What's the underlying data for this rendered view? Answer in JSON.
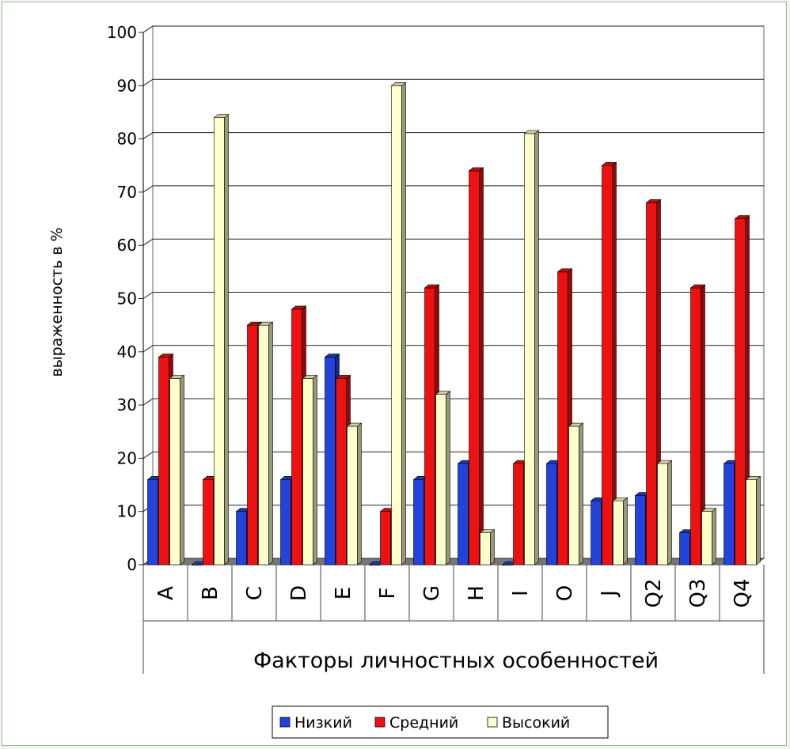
{
  "chart_data": {
    "type": "bar",
    "title": "",
    "xlabel": "Факторы личностных особенностей",
    "ylabel": "выраженность в %",
    "ylim": [
      0,
      100
    ],
    "yticks": [
      "0",
      "10",
      "20",
      "30",
      "40",
      "50",
      "60",
      "70",
      "80",
      "90",
      "100"
    ],
    "grid": true,
    "legend_position": "bottom",
    "categories": [
      "A",
      "B",
      "C",
      "D",
      "E",
      "F",
      "G",
      "H",
      "I",
      "O",
      "J",
      "Q2",
      "Q3",
      "Q4"
    ],
    "series": [
      {
        "name": "Низкий",
        "color": "#2244dd",
        "values": [
          16,
          0,
          10,
          16,
          39,
          0,
          16,
          19,
          0,
          19,
          12,
          13,
          6,
          19
        ]
      },
      {
        "name": "Средний",
        "color": "#ee1111",
        "values": [
          39,
          16,
          45,
          48,
          35,
          10,
          52,
          74,
          19,
          55,
          75,
          68,
          52,
          65
        ]
      },
      {
        "name": "Высокий",
        "color": "#ffffcc",
        "values": [
          35,
          84,
          45,
          35,
          26,
          90,
          32,
          6,
          81,
          26,
          12,
          19,
          10,
          16
        ]
      }
    ]
  }
}
